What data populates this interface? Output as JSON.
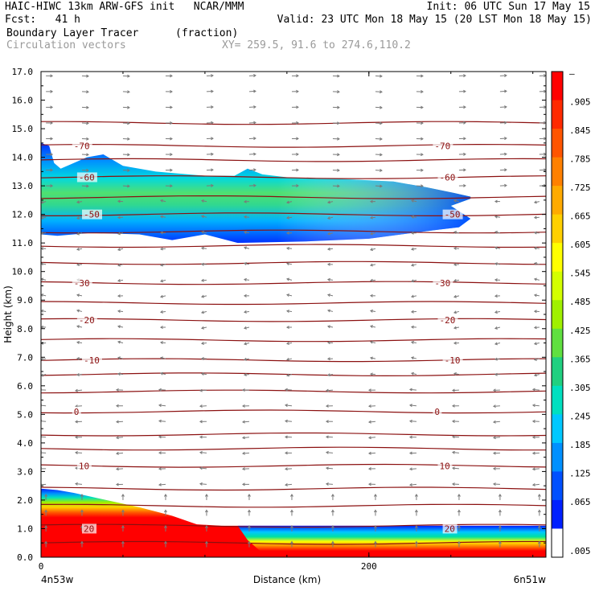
{
  "header": {
    "line1_left": "HAIC-HIWC 13km ARW-GFS init   NCAR/MMM",
    "line1_right": "Init: 06 UTC Sun 17 May 15",
    "line2_left": "Fcst:   41 h",
    "line2_right": "Valid: 23 UTC Mon 18 May 15 (20 LST Mon 18 May 15)",
    "line3_left": "Boundary Layer Tracer",
    "line3_units": "(fraction)",
    "line4_left": "Circulation vectors",
    "line4_right": "XY= 259.5, 91.6 to 274.6,110.2"
  },
  "chart_data": {
    "type": "heatmap",
    "title": "Boundary Layer Tracer (fraction)",
    "ylabel": "Height (km)",
    "xlabel": "Distance (km)",
    "x_left_label": "4n53w",
    "x_right_label": "6n51w",
    "x_ticks": [
      0,
      200
    ],
    "xlim": [
      0,
      308
    ],
    "ylim": [
      0,
      17
    ],
    "y_ticks": [
      "0.0",
      "1.0",
      "2.0",
      "3.0",
      "4.0",
      "5.0",
      "6.0",
      "7.0",
      "8.0",
      "9.0",
      "10.0",
      "11.0",
      "12.0",
      "13.0",
      "14.0",
      "15.0",
      "16.0",
      "17.0"
    ],
    "colorbar": {
      "labels": [
        "–",
        ".905",
        ".845",
        ".785",
        ".725",
        ".665",
        ".605",
        ".545",
        ".485",
        ".425",
        ".365",
        ".305",
        ".245",
        ".185",
        ".125",
        ".065",
        ".005"
      ],
      "colors": [
        "#ff0000",
        "#ff2a00",
        "#ff5500",
        "#ff8000",
        "#ffaa00",
        "#ffd000",
        "#ffff00",
        "#d4ff00",
        "#a0f000",
        "#60e040",
        "#20d080",
        "#00e0c0",
        "#00c8ff",
        "#0090ff",
        "#0050ff",
        "#0020ff",
        "#ffffff"
      ]
    },
    "temperature_contours": [
      {
        "label": "-70",
        "height_km": 14.4
      },
      {
        "label": "-60",
        "height_km": 13.3
      },
      {
        "label": "-50",
        "height_km": 12.0
      },
      {
        "label": "-30",
        "height_km": 9.6
      },
      {
        "label": "-20",
        "height_km": 8.3
      },
      {
        "label": "-10",
        "height_km": 6.9
      },
      {
        "label": "0",
        "height_km": 5.1
      },
      {
        "label": "10",
        "height_km": 3.2
      },
      {
        "label": "20",
        "height_km": 1.0
      }
    ],
    "contour_heights_km": [
      0.5,
      1.1,
      1.8,
      2.4,
      3.2,
      3.8,
      4.3,
      5.1,
      5.8,
      6.4,
      6.9,
      7.6,
      8.3,
      8.9,
      9.6,
      10.3,
      10.9,
      11.4,
      12.0,
      12.6,
      13.3,
      13.9,
      14.4,
      15.2
    ],
    "upper_plume": {
      "x_start_km": 0,
      "x_end_km": 265,
      "bottom_km": 11.0,
      "top_km": 14.5,
      "core_km": 12.3
    },
    "boundary_layer": {
      "top_left_km": 2.4,
      "top_right_km": 1.1
    }
  }
}
